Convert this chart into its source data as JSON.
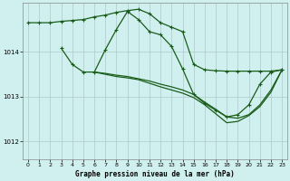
{
  "title": "Graphe pression niveau de la mer (hPa)",
  "background_color": "#d0f0f0",
  "grid_color": "#b0c8c8",
  "line_color": "#1a5c1a",
  "xlim": [
    -0.5,
    23.5
  ],
  "ylim": [
    1011.6,
    1015.1
  ],
  "yticks": [
    1012,
    1013,
    1014
  ],
  "xticks": [
    0,
    1,
    2,
    3,
    4,
    5,
    6,
    7,
    8,
    9,
    10,
    11,
    12,
    13,
    14,
    15,
    16,
    17,
    18,
    19,
    20,
    21,
    22,
    23
  ],
  "series": [
    {
      "x": [
        0,
        1,
        2,
        3,
        4,
        5,
        6,
        7,
        8,
        9,
        10,
        11,
        12,
        13,
        14,
        15,
        16,
        17,
        18,
        19,
        20,
        21,
        22,
        23
      ],
      "y": [
        1014.65,
        1014.65,
        1014.65,
        1014.68,
        1014.7,
        1014.72,
        1014.78,
        1014.82,
        1014.88,
        1014.92,
        1014.95,
        1014.85,
        1014.65,
        1014.55,
        1014.45,
        1013.72,
        1013.6,
        1013.58,
        1013.57,
        1013.57,
        1013.57,
        1013.57,
        1013.57,
        1013.6
      ],
      "marker": "+"
    },
    {
      "x": [
        3,
        4,
        5,
        6,
        7,
        8,
        9,
        10,
        11,
        12,
        13,
        14,
        15,
        16,
        17,
        18,
        19,
        20,
        21,
        22,
        23
      ],
      "y": [
        1014.08,
        1013.72,
        1013.55,
        1013.55,
        1014.05,
        1014.5,
        1014.9,
        1014.72,
        1014.45,
        1014.38,
        1014.12,
        1013.62,
        1013.05,
        1012.85,
        1012.7,
        1012.55,
        1012.6,
        1012.82,
        1013.28,
        1013.55,
        1013.6
      ],
      "marker": "+"
    },
    {
      "x": [
        6,
        7,
        8,
        9,
        10,
        11,
        12,
        13,
        14,
        15,
        16,
        17,
        18,
        19,
        20,
        21,
        22,
        23
      ],
      "y": [
        1013.55,
        1013.52,
        1013.48,
        1013.45,
        1013.4,
        1013.35,
        1013.28,
        1013.22,
        1013.15,
        1013.05,
        1012.88,
        1012.72,
        1012.55,
        1012.52,
        1012.6,
        1012.82,
        1013.15,
        1013.6
      ],
      "marker": null
    },
    {
      "x": [
        6,
        7,
        8,
        9,
        10,
        11,
        12,
        13,
        14,
        15,
        16,
        17,
        18,
        19,
        20,
        21,
        22,
        23
      ],
      "y": [
        1013.55,
        1013.5,
        1013.45,
        1013.42,
        1013.38,
        1013.3,
        1013.22,
        1013.15,
        1013.08,
        1012.98,
        1012.82,
        1012.62,
        1012.42,
        1012.45,
        1012.58,
        1012.78,
        1013.1,
        1013.6
      ],
      "marker": null
    }
  ]
}
